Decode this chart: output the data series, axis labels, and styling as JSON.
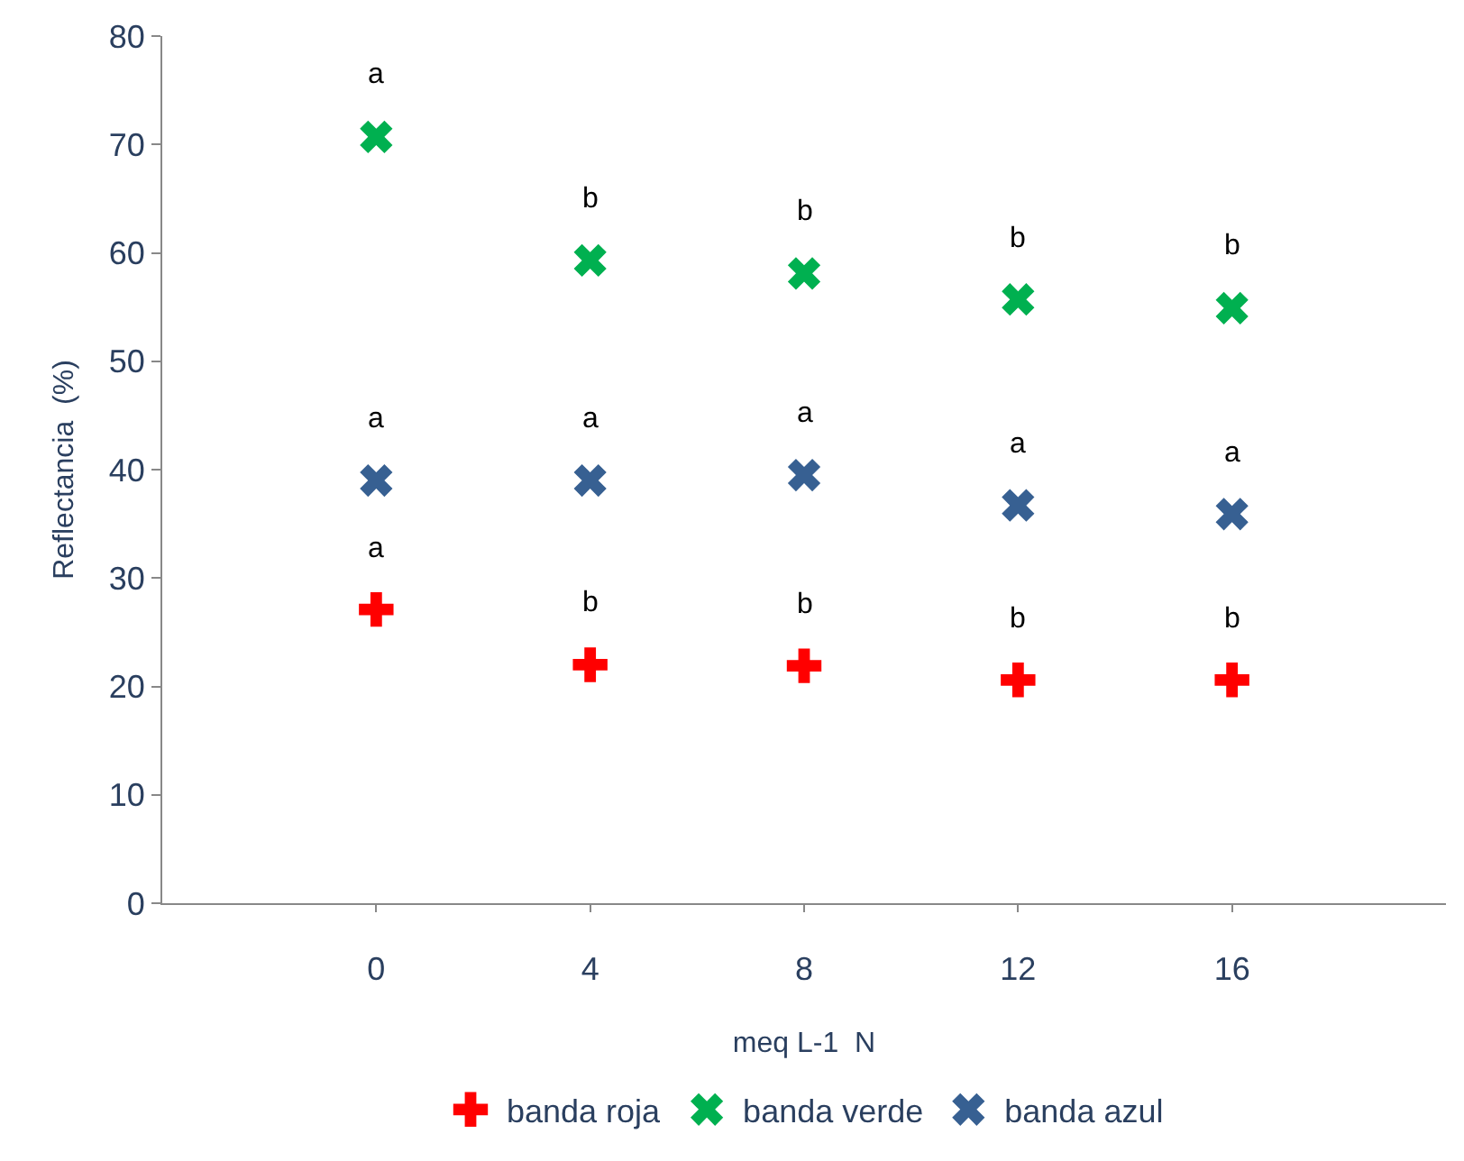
{
  "chart_data": {
    "type": "scatter",
    "xlabel": "meq L-1  N",
    "ylabel": "Reflectancia  (%)",
    "x": [
      0,
      4,
      8,
      12,
      16
    ],
    "series": [
      {
        "name": "banda roja",
        "color": "#ff0000",
        "marker": "cross",
        "values": [
          27.1,
          22.0,
          21.9,
          20.6,
          20.6
        ]
      },
      {
        "name": "banda verde",
        "color": "#00b050",
        "marker": "x",
        "values": [
          70.7,
          59.3,
          58.1,
          55.7,
          54.9
        ]
      },
      {
        "name": "banda azul",
        "color": "#376092",
        "marker": "x",
        "values": [
          39.0,
          39.0,
          39.5,
          36.7,
          35.9
        ]
      }
    ],
    "annotations": [
      {
        "text": "a",
        "x": 0,
        "y": 27.1
      },
      {
        "text": "b",
        "x": 4,
        "y": 22.0
      },
      {
        "text": "b",
        "x": 8,
        "y": 21.9
      },
      {
        "text": "b",
        "x": 12,
        "y": 20.6
      },
      {
        "text": "b",
        "x": 16,
        "y": 20.6
      },
      {
        "text": "a",
        "x": 0,
        "y": 70.7
      },
      {
        "text": "b",
        "x": 4,
        "y": 59.3
      },
      {
        "text": "b",
        "x": 8,
        "y": 58.1
      },
      {
        "text": "b",
        "x": 12,
        "y": 55.7
      },
      {
        "text": "b",
        "x": 16,
        "y": 54.9
      },
      {
        "text": "a",
        "x": 0,
        "y": 39.0
      },
      {
        "text": "a",
        "x": 4,
        "y": 39.0
      },
      {
        "text": "a",
        "x": 8,
        "y": 39.5
      },
      {
        "text": "a",
        "x": 12,
        "y": 36.7
      },
      {
        "text": "a",
        "x": 16,
        "y": 35.9
      }
    ],
    "xlim": [
      -4,
      20
    ],
    "xticks": [
      0,
      4,
      8,
      12,
      16
    ],
    "ylim": [
      0,
      80
    ],
    "yticks": [
      0,
      10,
      20,
      30,
      40,
      50,
      60,
      70,
      80
    ],
    "legend": "bottom"
  }
}
